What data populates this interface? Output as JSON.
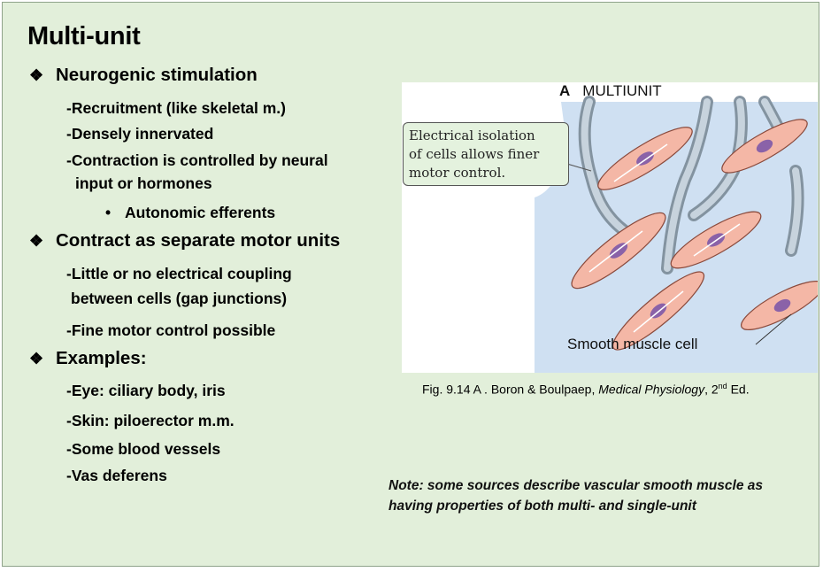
{
  "title": "Multi-unit",
  "bullets": [
    {
      "icon": "diamond-cross-icon",
      "label": "Neurogenic stimulation",
      "items": [
        "-Recruitment (like skeletal m.)",
        "-Densely innervated",
        "-Contraction is controlled by neural",
        "input or hormones"
      ],
      "subitem": "Autonomic efferents"
    },
    {
      "icon": "diamond-cross-icon",
      "label": "Contract as separate motor units",
      "items": [
        "-Little or no electrical coupling",
        "between cells (gap junctions)",
        "-Fine motor control possible"
      ]
    },
    {
      "icon": "diamond-cross-icon",
      "label": "Examples:",
      "items": [
        "-Eye: ciliary body, iris",
        "-Skin: piloerector m.m.",
        "-Some blood vessels",
        "-Vas deferens"
      ]
    }
  ],
  "figure": {
    "panel_letter": "A",
    "panel_title": "MULTIUNIT",
    "callout_lines": [
      "Electrical isolation",
      "of cells allows finer",
      "motor control."
    ],
    "cell_label": "Smooth muscle cell",
    "colors": {
      "background": "#cfe0f2",
      "cell": "#f4b7a6",
      "nucleus": "#8a62a8",
      "nerve": "#b8c6d2"
    }
  },
  "caption": {
    "prefix": "Fig. 9.14 A . Boron & Boulpaep, ",
    "italic": "Medical Physiology",
    "mid": ", 2",
    "sup": "nd",
    "suffix": " Ed."
  },
  "note": {
    "line1": "Note: some sources describe vascular smooth muscle as",
    "line2": "having properties of  both multi- and single-unit"
  },
  "colors": {
    "slide_bg": "#e2efda",
    "slide_border": "#8fa38a"
  }
}
